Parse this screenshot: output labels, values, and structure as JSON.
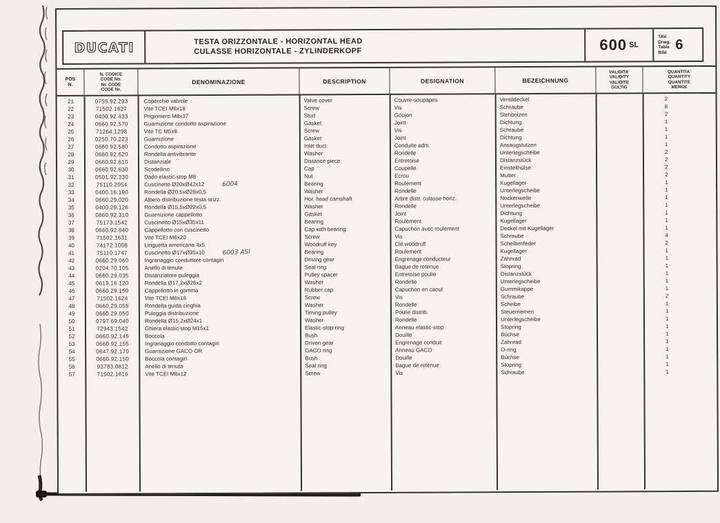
{
  "colors": {
    "paper": "#f5f4f0",
    "ink": "#2b2a27",
    "line": "#35332e"
  },
  "header": {
    "brand": "DUCATI",
    "title_line1": "TESTA ORIZZONTALE - HORIZONTAL HEAD",
    "title_line2": "CULASSE HORIZONTALE - ZYLINDERKOPF",
    "model": "600",
    "model_suffix": "SL",
    "drawing_labels": "TAV.\nDrwg.\nTable\nBild",
    "drawing_number": "6"
  },
  "table": {
    "headers": {
      "pos": "POS\nN.",
      "code": "N. CODICE\nCODE No.\nNr. CODE\nCODE Nr.",
      "denominazione": "DENOMINAZIONE",
      "description": "DESCRIPTION",
      "designation": "DESIGNATION",
      "bezeichnung": "BEZEICHNUNG",
      "validity": "VALIDITA'\nVALIDITY\nVALIDITE\nGULTIG",
      "quantity": "QUANTITA'\nQUANTITY\nQUANTITE\nMENGE"
    },
    "rows": [
      {
        "pos": "21",
        "code": "0755.92.293",
        "den": "Coperchio valvole",
        "note": "",
        "desc": "Valve cover",
        "des": "Couvre-soupapes",
        "bez": "Ventildeckel",
        "qty": "2"
      },
      {
        "pos": "22",
        "code": "71502.1627",
        "den": "Vite TCEI M6x18",
        "note": "",
        "desc": "Screw",
        "des": "Vis",
        "bez": "Schraube",
        "qty": "8"
      },
      {
        "pos": "23",
        "code": "0400.92.433",
        "den": "Prigioniero M8x37",
        "note": "",
        "desc": "Stud",
        "des": "Goujon",
        "bez": "Stehbolzen",
        "qty": "2"
      },
      {
        "pos": "24",
        "code": "0660.92.570",
        "den": "Guarnizione condotto aspirazione",
        "note": "",
        "desc": "Gasket",
        "des": "Joint",
        "bez": "Dichtung",
        "qty": "1"
      },
      {
        "pos": "25",
        "code": "71264.1298",
        "den": "Vite TC M5x8",
        "note": "",
        "desc": "Screw",
        "des": "Vis",
        "bez": "Schraube",
        "qty": "1"
      },
      {
        "pos": "26",
        "code": "0250.70.223",
        "den": "Guarnizione",
        "note": "",
        "desc": "Gasket",
        "des": "Joint",
        "bez": "Dichtung",
        "qty": "1"
      },
      {
        "pos": "27",
        "code": "0660.92.580",
        "den": "Condotto aspirazione",
        "note": "",
        "desc": "Inlet duct",
        "des": "Conduite adm.",
        "bez": "Ansaugstutzen",
        "qty": "1"
      },
      {
        "pos": "28",
        "code": "0660.92.620",
        "den": "Rondella antivibrante",
        "note": "",
        "desc": "Washer",
        "des": "Rondelle",
        "bez": "Unterlegscheibe",
        "qty": "2"
      },
      {
        "pos": "29",
        "code": "0660.92.610",
        "den": "Distanziale",
        "note": "",
        "desc": "Distance piece",
        "des": "Entretoise",
        "bez": "Distanzstück",
        "qty": "2"
      },
      {
        "pos": "30",
        "code": "0660.92.630",
        "den": "Scodellino",
        "note": "",
        "desc": "Cap",
        "des": "Coupelle",
        "bez": "Einstellhülse",
        "qty": "2"
      },
      {
        "pos": "31",
        "code": "0501.92.330",
        "den": "Dado elastic-stop M8",
        "note": "",
        "desc": "Nut",
        "des": "Ecrou",
        "bez": "Mutter",
        "qty": "2"
      },
      {
        "pos": "32",
        "code": "75110.2054",
        "den": "Cuscinetto Ø20xØ42x12",
        "note": "6004",
        "desc": "Bearing",
        "des": "Roulement",
        "bez": "Kugellager",
        "qty": "1"
      },
      {
        "pos": "33",
        "code": "0400.16.190",
        "den": "Rondella Ø20,5xØ28x0,5",
        "note": "",
        "desc": "Washer",
        "des": "Rondelle",
        "bez": "Unterlegscheibe",
        "qty": "1"
      },
      {
        "pos": "34",
        "code": "0660.29.020",
        "den": "Albero distribuzione testa orizz.",
        "note": "",
        "desc": "Hor. head camshaft",
        "des": "Arbre distr. culasse horiz.",
        "bez": "Nockenwelle",
        "qty": "1"
      },
      {
        "pos": "35",
        "code": "0400.29.126",
        "den": "Rondella Ø15,5xØ22x0,5",
        "note": "",
        "desc": "Washer",
        "des": "Rondelle",
        "bez": "Unterlegscheibe",
        "qty": "1"
      },
      {
        "pos": "36",
        "code": "0660.92.310",
        "den": "Guarnizione cappellotto",
        "note": "",
        "desc": "Gasket",
        "des": "Joint",
        "bez": "Dichtung",
        "qty": "1"
      },
      {
        "pos": "37",
        "code": "75173.1542",
        "den": "Cuscinetto Ø15xØ35x11",
        "note": "",
        "desc": "Bearing",
        "des": "Roulement",
        "bez": "Kugellager",
        "qty": "1"
      },
      {
        "pos": "38",
        "code": "0660.92.640",
        "den": "Cappellotto con cuscinetto",
        "note": "",
        "desc": "Cap with bearing",
        "des": "Capuchon avec roulement",
        "bez": "Deckel mit Kugellager",
        "qty": "1"
      },
      {
        "pos": "39",
        "code": "71502.1631",
        "den": "Vite TCEI M6x20",
        "note": "",
        "desc": "Screw",
        "des": "Vis",
        "bez": "Schraube",
        "qty": "4"
      },
      {
        "pos": "40",
        "code": "74172.1008",
        "den": "Linguetta americana 4x5",
        "note": "",
        "desc": "Woodruff key",
        "des": "Clé woodruff",
        "bez": "Scheibenfeder",
        "qty": "2"
      },
      {
        "pos": "41",
        "code": "75110.1747",
        "den": "Cuscinetto Ø17xØ35x10",
        "note": "6003 ASl",
        "desc": "Bearing",
        "des": "Roulement",
        "bez": "Kugellager",
        "qty": "1"
      },
      {
        "pos": "42",
        "code": "0660.29.060",
        "den": "Ingranaggio conduttore contagiri",
        "note": "",
        "desc": "Driving gear",
        "des": "Engrenage conducteur",
        "bez": "Zahnrad",
        "qty": "1"
      },
      {
        "pos": "43",
        "code": "0204.70.105",
        "den": "Anello di tenuta",
        "note": "",
        "desc": "Seal ring",
        "des": "Bague de retenue",
        "bez": "Stopring",
        "qty": "1"
      },
      {
        "pos": "44",
        "code": "0660.29.035",
        "den": "Distanziatore puleggia",
        "note": "",
        "desc": "Pulley spacer",
        "des": "Entretoise poulie",
        "bez": "Distanzstück",
        "qty": "1"
      },
      {
        "pos": "45",
        "code": "0619.16.120",
        "den": "Rondella Ø17,2xØ26x2",
        "note": "",
        "desc": "Washer",
        "des": "Rondelle",
        "bez": "Unterlegscheibe",
        "qty": "1"
      },
      {
        "pos": "46",
        "code": "0660.29.150",
        "den": "Cappellotto in gomma",
        "note": "",
        "desc": "Rubber cap",
        "des": "Capuchon en caout",
        "bez": "Gummikappe",
        "qty": "1"
      },
      {
        "pos": "47",
        "code": "71502.1624",
        "den": "Vite TCEI M6x16",
        "note": "",
        "desc": "Screw",
        "des": "Vis",
        "bez": "Schraube",
        "qty": "2"
      },
      {
        "pos": "48",
        "code": "0660.29.055",
        "den": "Rondella guida cinghia",
        "note": "",
        "desc": "Washer",
        "des": "Rondelle",
        "bez": "Scheibe",
        "qty": "1"
      },
      {
        "pos": "49",
        "code": "0660.29.050",
        "den": "Puleggia distribuzione",
        "note": "",
        "desc": "Timing pulley",
        "des": "Poulie distrib.",
        "bez": "Steuerriemen",
        "qty": "1"
      },
      {
        "pos": "50",
        "code": "0797.69.040",
        "den": "Rondella Ø15,2xØ24x1",
        "note": "",
        "desc": "Washer",
        "des": "Rondelle",
        "bez": "Unterlegscheibe",
        "qty": "1"
      },
      {
        "pos": "51",
        "code": "72943.1542",
        "den": "Ghiera elastic-stop M15x1",
        "note": "",
        "desc": "Elastic-stop ring",
        "des": "Anneau elastic-stop",
        "bez": "Stopring",
        "qty": "1"
      },
      {
        "pos": "52",
        "code": "0660.92.145",
        "den": "Boccola",
        "note": "",
        "desc": "Bush",
        "des": "Douille",
        "bez": "Büchse",
        "qty": "1"
      },
      {
        "pos": "53",
        "code": "0660.92.155",
        "den": "Ingranaggio condotto contagiri",
        "note": "",
        "desc": "Driven gear",
        "des": "Engrenage conduit",
        "bez": "Zahnrad",
        "qty": "1"
      },
      {
        "pos": "54",
        "code": "0647.92.170",
        "den": "Guarnizione GACO OR",
        "note": "",
        "desc": "GACO ring",
        "des": "Anneau GACO",
        "bez": "O-ring",
        "qty": "1"
      },
      {
        "pos": "55",
        "code": "0660.92.150",
        "den": "Boccola contagiri",
        "note": "",
        "desc": "Bush",
        "des": "Douille",
        "bez": "Büchse",
        "qty": "1"
      },
      {
        "pos": "56",
        "code": "93783.0812",
        "den": "Anello di tenuta",
        "note": "",
        "desc": "Seal ring",
        "des": "Bague de retenue",
        "bez": "Stopring",
        "qty": "1"
      },
      {
        "pos": "57",
        "code": "71502.1616",
        "den": "Vite TCEI M6x12",
        "note": "",
        "desc": "Screw",
        "des": "Vis",
        "bez": "Schraube",
        "qty": "1"
      }
    ]
  }
}
